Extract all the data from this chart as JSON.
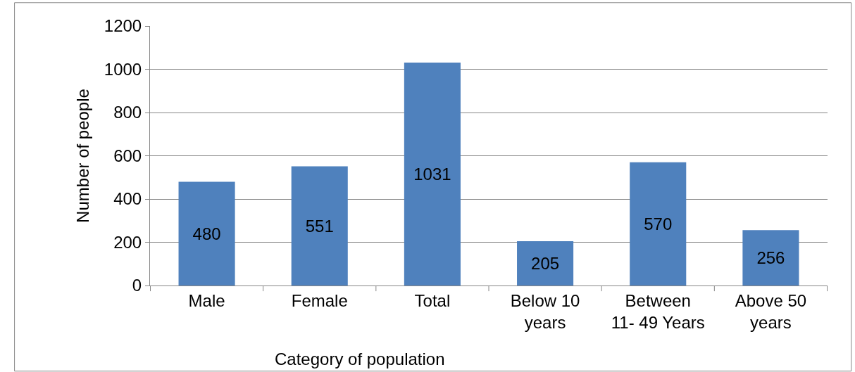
{
  "chart_data": {
    "type": "bar",
    "xlabel": "Category of population",
    "ylabel": "Number of people",
    "categories": [
      "Male",
      "Female",
      "Total",
      "Below 10\nyears",
      "Between\n11- 49 Years",
      "Above 50\nyears"
    ],
    "values": [
      480,
      551,
      1031,
      205,
      570,
      256
    ],
    "color": "#4f81bd",
    "ylim": [
      0,
      1200
    ],
    "yticks": [
      0,
      200,
      400,
      600,
      800,
      1000,
      1200
    ],
    "grid": "y",
    "data_labels": true
  }
}
